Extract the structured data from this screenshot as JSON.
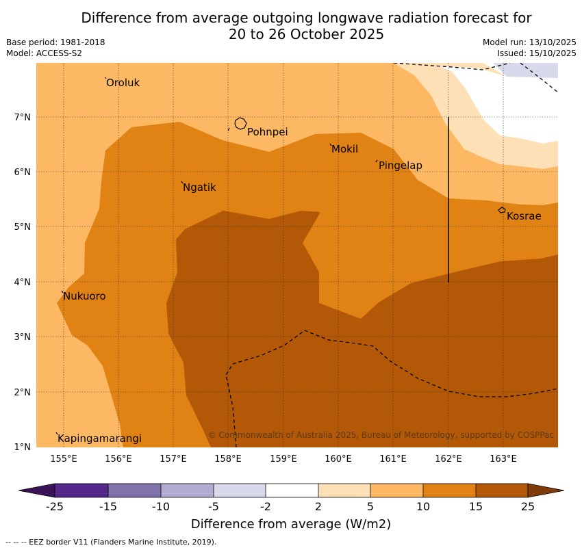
{
  "header": {
    "title_line1": "Difference from average outgoing longwave radiation forecast for",
    "title_line2": "20 to 26 October 2025",
    "base_period": "Base period: 1981-2018",
    "model": "Model: ACCESS-S2",
    "model_run": "Model run: 13/10/2025",
    "issued": "Issued: 15/10/2025"
  },
  "map": {
    "lon_labels": [
      "155°E",
      "156°E",
      "157°E",
      "158°E",
      "159°E",
      "160°E",
      "161°E",
      "162°E",
      "163°E"
    ],
    "lat_labels": [
      "7°N",
      "6°N",
      "5°N",
      "4°N",
      "3°N",
      "2°N",
      "1°N"
    ],
    "places": {
      "oroluk": "Oroluk",
      "pohnpei": "Pohnpei",
      "mokil": "Mokil",
      "pingelap": "Pingelap",
      "ngatik": "Ngatik",
      "kosrae": "Kosrae",
      "nukuoro": "Nukuoro",
      "kapingamarangi": "Kapingamarangi"
    },
    "copyright": "© Commonwealth of Australia 2025, Bureau of Meteorology, supported by COSPPac"
  },
  "colorbar": {
    "title": "Difference from average (W/m2)",
    "labels": [
      "-25",
      "-15",
      "-10",
      "-5",
      "-2",
      "2",
      "5",
      "10",
      "15",
      "25"
    ],
    "colors": {
      "below_-25": "#3b1358",
      "m25_m15": "#542788",
      "m15_m10": "#8073ac",
      "m10_m5": "#b2abd2",
      "m5_m2": "#d8daeb",
      "m2_2": "#ffffff",
      "p2_5": "#fee0b6",
      "p5_10": "#fdb863",
      "p10_15": "#e08214",
      "p15_25": "#b35806",
      "above_25": "#7f3b08"
    }
  },
  "footer": {
    "legend": "--  --  -- EEZ border V11 (Flanders Marine Institute, 2019)."
  }
}
